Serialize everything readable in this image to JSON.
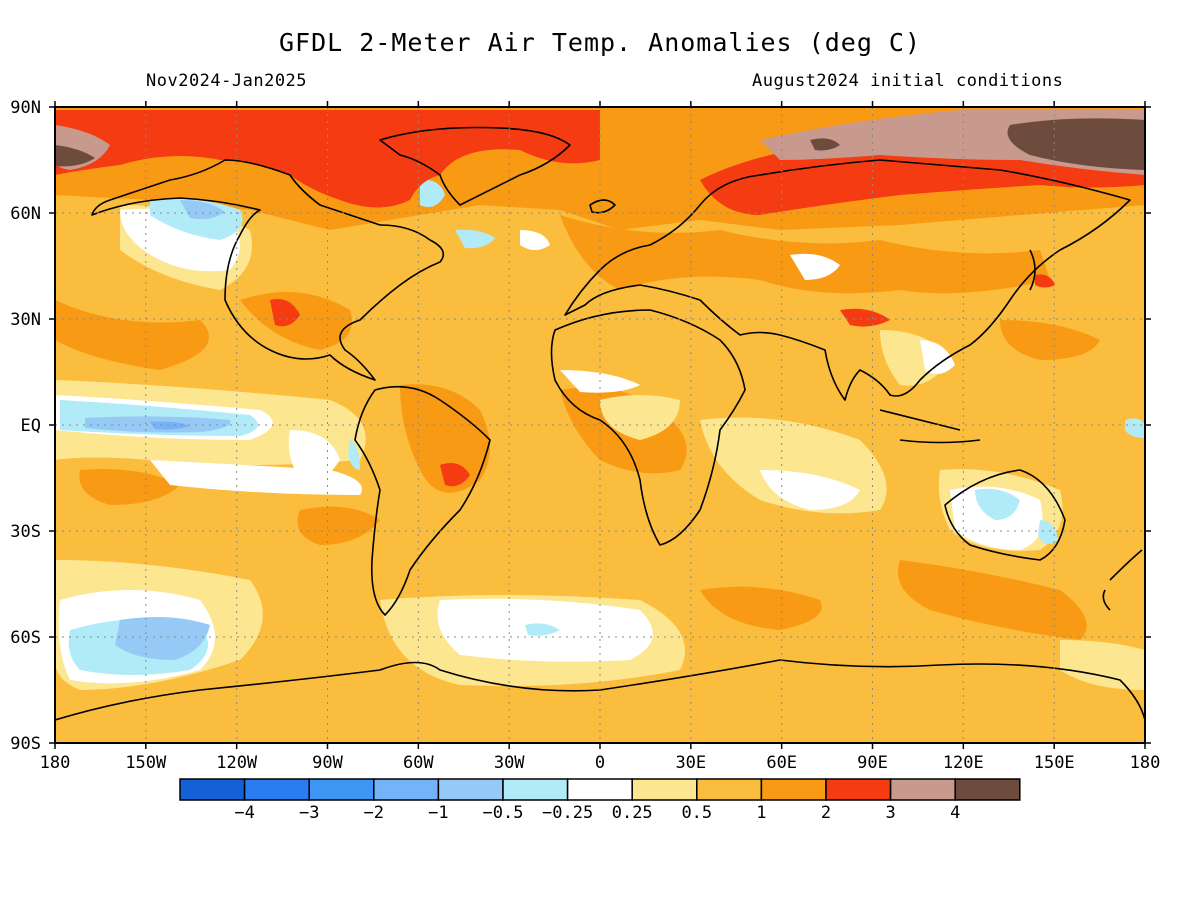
{
  "title": "GFDL 2-Meter Air Temp. Anomalies (deg C)",
  "period": "Nov2024-Jan2025",
  "initial_conditions": "August2024 initial conditions",
  "map": {
    "projection": "equirectangular",
    "lon_range": [
      -180,
      180
    ],
    "lat_range": [
      -90,
      90
    ],
    "grid_lines": "dotted",
    "lat_tick_labels": [
      "90N",
      "60N",
      "30N",
      "EQ",
      "30S",
      "60S",
      "90S"
    ],
    "lon_tick_labels": [
      "180",
      "150W",
      "120W",
      "90W",
      "60W",
      "30W",
      "0",
      "30E",
      "60E",
      "90E",
      "120E",
      "150E",
      "180"
    ],
    "background_anomaly_class": "0.5 to 1"
  },
  "colorbar": {
    "tick_labels": [
      "-4",
      "-3",
      "-2",
      "-1",
      "-0.5",
      "-0.25",
      "0.25",
      "0.5",
      "1",
      "2",
      "3",
      "4"
    ],
    "colors": [
      "#1560d4",
      "#2a7cf0",
      "#3d96f3",
      "#74b3f7",
      "#97c9f7",
      "#b0ebf7",
      "#ffffff",
      "#fde690",
      "#fbbd3d",
      "#f99a14",
      "#f43b12",
      "#c79a8d",
      "#6d4b3d"
    ]
  },
  "anomaly_regions": [
    {
      "region": "Arctic / Siberia",
      "class": ">4",
      "color": "#6d4b3d"
    },
    {
      "region": "Arctic rim",
      "class": "3 to 4",
      "color": "#c79a8d"
    },
    {
      "region": "Northern Canada",
      "class": "2 to 3",
      "color": "#f43b12"
    },
    {
      "region": "Northern Russia",
      "class": "2 to 3",
      "color": "#f43b12"
    },
    {
      "region": "Central Brazil",
      "class": "1 to 2",
      "color": "#f99a14"
    },
    {
      "region": "Equatorial Pacific",
      "class": "-1 to -0.5",
      "color": "#97c9f7"
    },
    {
      "region": "Alaska",
      "class": "-0.5 to -0.25",
      "color": "#b0ebf7"
    },
    {
      "region": "South Pacific 60S",
      "class": "-1 to -0.5",
      "color": "#97c9f7"
    },
    {
      "region": "Southern Ocean",
      "class": "-0.25 to 0.25",
      "color": "#ffffff"
    },
    {
      "region": "Interior Australia",
      "class": "-0.5 to -0.25",
      "color": "#b0ebf7"
    }
  ]
}
